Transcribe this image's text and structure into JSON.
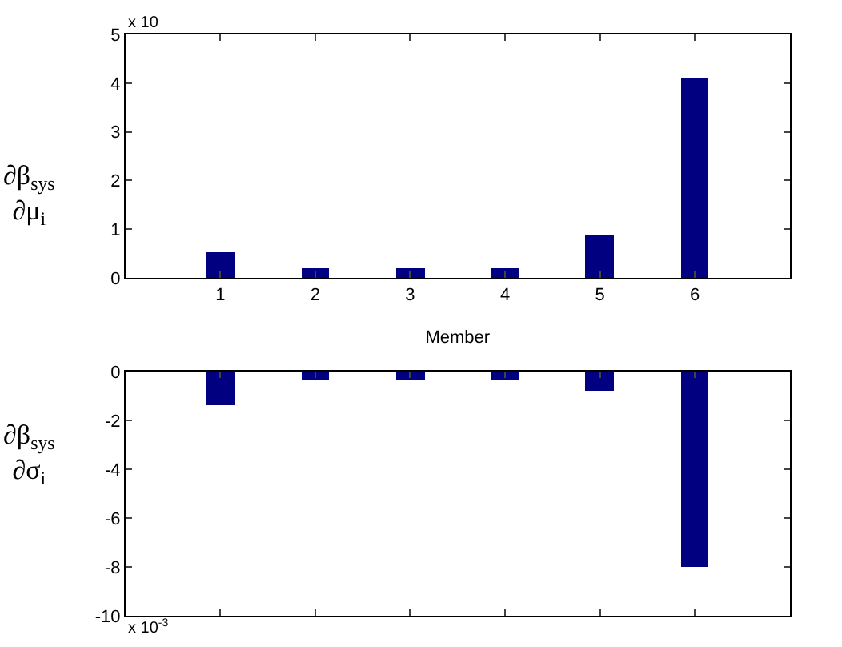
{
  "chart_data": [
    {
      "type": "bar",
      "x": [
        1,
        2,
        3,
        4,
        5,
        6
      ],
      "values": [
        0.52,
        0.18,
        0.18,
        0.18,
        0.88,
        4.1
      ],
      "color": "#000080",
      "xlim": [
        0,
        7
      ],
      "xticks": [
        1,
        2,
        3,
        4,
        5,
        6
      ],
      "ylim": [
        0,
        5
      ],
      "yticks": [
        0,
        1,
        2,
        3,
        4,
        5
      ],
      "xlabel": "Member",
      "ylabel": "∂β$_{sys}$\n∂μ$_{i}$",
      "annotations": [
        "x 10"
      ]
    },
    {
      "type": "bar",
      "x": [
        1,
        2,
        3,
        4,
        5,
        6
      ],
      "values": [
        -1.4,
        -0.3,
        -0.3,
        -0.3,
        -0.8,
        -8.0
      ],
      "color": "#000080",
      "xlim": [
        0,
        7
      ],
      "xticks": [
        1,
        2,
        3,
        4,
        5,
        6
      ],
      "ylim": [
        -10,
        0
      ],
      "yticks": [
        -10,
        -8,
        -6,
        -4,
        -2,
        0
      ],
      "ylabel": "∂β$_{sys}$\n∂σ$_{i}$",
      "annotations": [
        "x 10$^{-3}$"
      ],
      "tick_labels": "y"
    }
  ]
}
